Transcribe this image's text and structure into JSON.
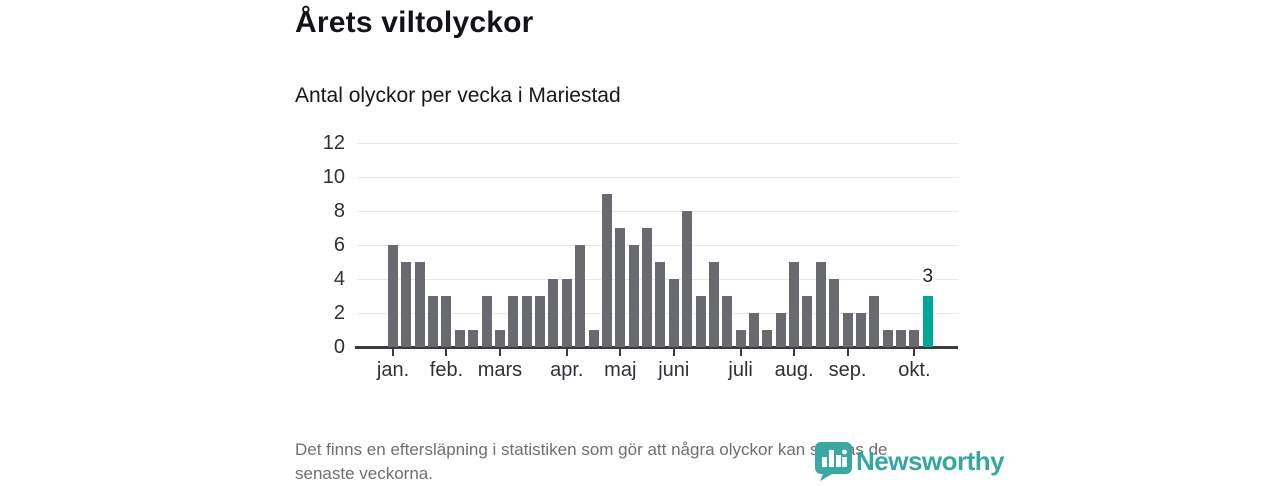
{
  "header": {
    "title": "Årets viltolyckor",
    "subtitle": "Antal olyckor per vecka i Mariestad"
  },
  "footer": {
    "line1": "Det finns en eftersläpning i statistiken som gör att några olyckor kan saknas de",
    "line2": "senaste veckorna."
  },
  "logo": {
    "text": "Newsworthy",
    "icon": "newsworthy-barchart-bubble-icon",
    "color": "#35a7a0"
  },
  "colors": {
    "bar": "#696970",
    "highlight": "#00a796",
    "grid": "#e8e8e8",
    "axis": "#3a3a40",
    "title_text": "#111317",
    "muted_text": "#6f6f6f"
  },
  "chart_data": {
    "type": "bar",
    "title": "Årets viltolyckor",
    "subtitle": "Antal olyckor per vecka i Mariestad",
    "x_unit": "vecka (week)",
    "ylabel": "",
    "xlabel": "",
    "ylim": [
      0,
      12
    ],
    "y_ticks": [
      0,
      2,
      4,
      6,
      8,
      10,
      12
    ],
    "grid": true,
    "legend": false,
    "values": [
      6,
      5,
      5,
      3,
      3,
      1,
      1,
      3,
      1,
      3,
      3,
      3,
      4,
      4,
      6,
      1,
      9,
      7,
      6,
      7,
      5,
      4,
      8,
      3,
      5,
      3,
      1,
      2,
      1,
      2,
      5,
      3,
      5,
      4,
      2,
      2,
      3,
      1,
      1,
      1,
      3
    ],
    "highlight_index": 40,
    "highlight_label": "3",
    "month_ticks": [
      {
        "label": "jan.",
        "week_index": 0
      },
      {
        "label": "feb.",
        "week_index": 4
      },
      {
        "label": "mars",
        "week_index": 8
      },
      {
        "label": "apr.",
        "week_index": 13
      },
      {
        "label": "maj",
        "week_index": 17
      },
      {
        "label": "juni",
        "week_index": 21
      },
      {
        "label": "juli",
        "week_index": 26
      },
      {
        "label": "aug.",
        "week_index": 30
      },
      {
        "label": "sep.",
        "week_index": 34
      },
      {
        "label": "okt.",
        "week_index": 39
      }
    ]
  }
}
